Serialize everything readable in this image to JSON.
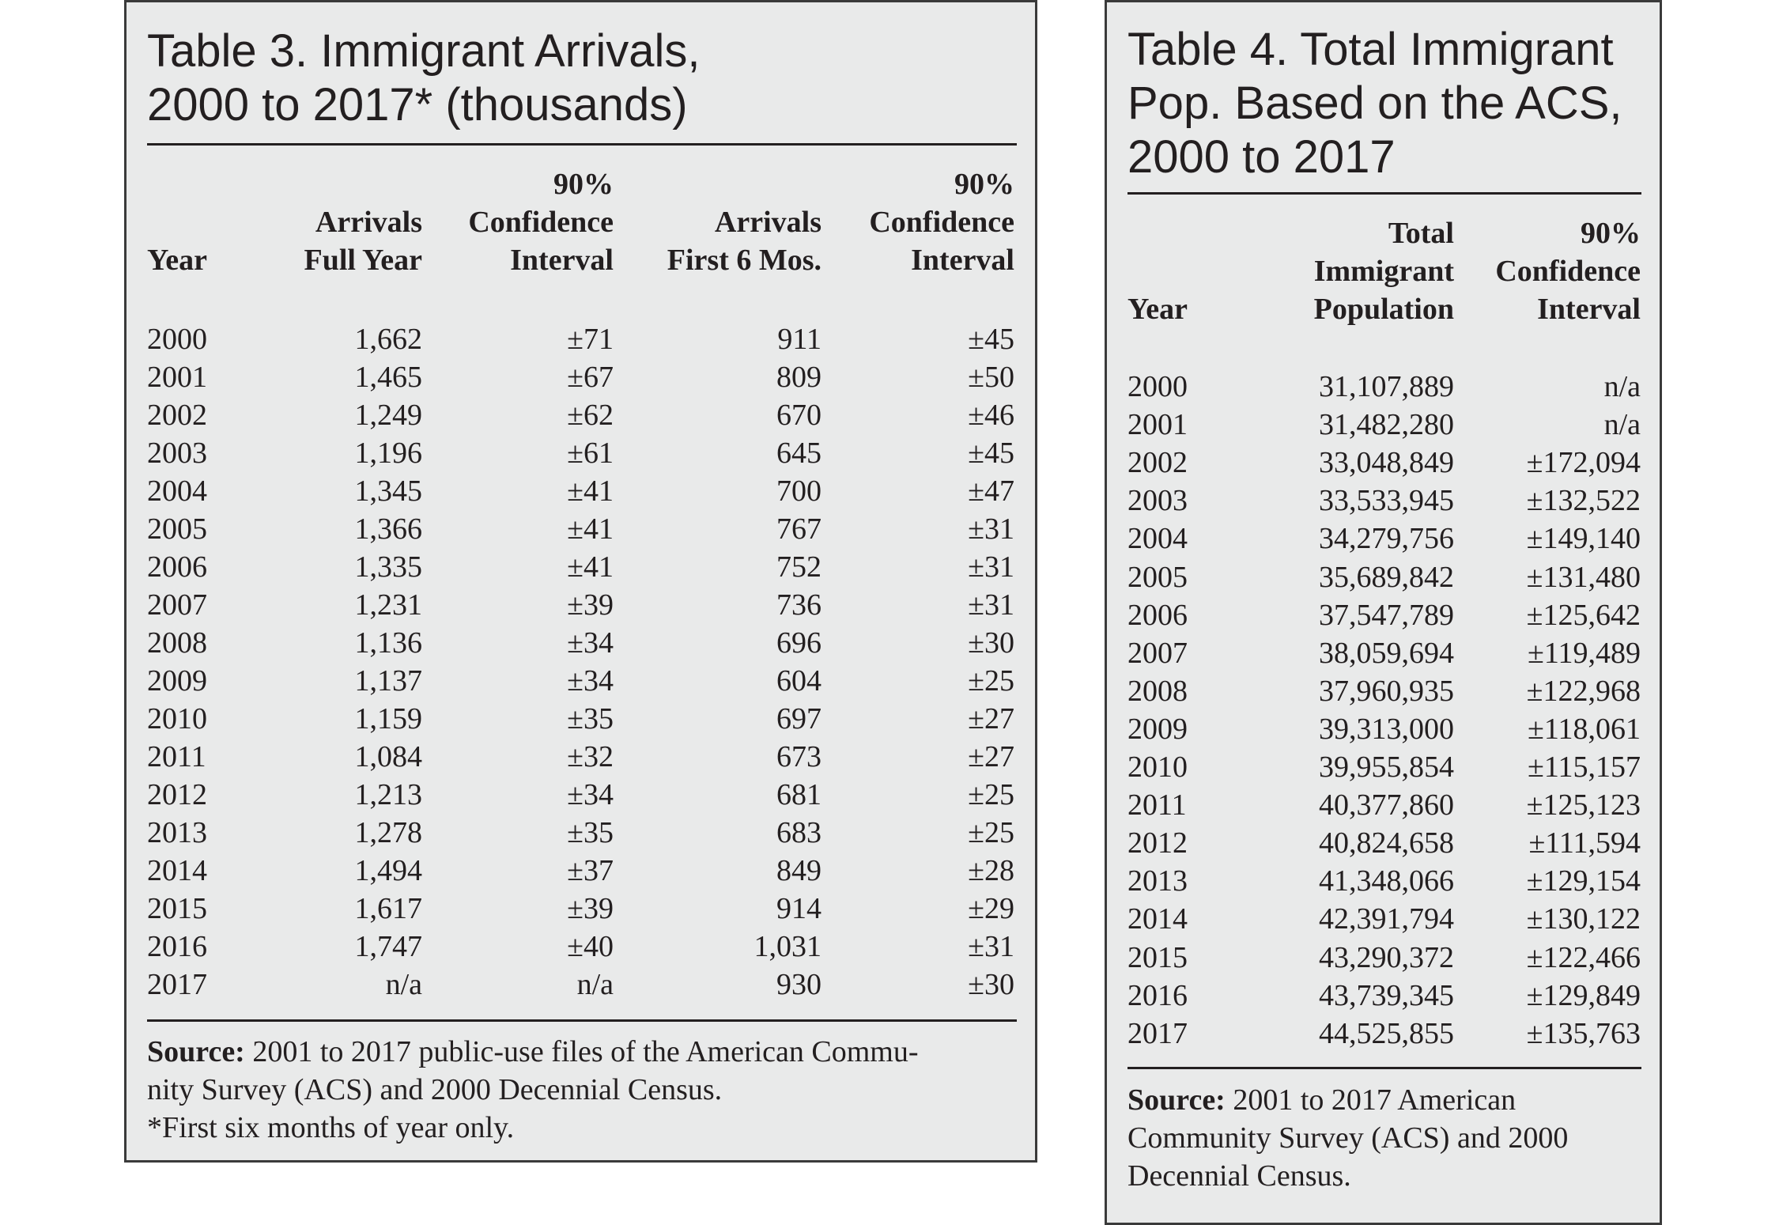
{
  "table3": {
    "title_line1": "Table 3. Immigrant Arrivals,",
    "title_line2": "2000 to 2017* (thousands)",
    "headers": {
      "year": "Year",
      "arrivals_full": [
        "Arrivals",
        "Full Year"
      ],
      "ci1": [
        "90%",
        "Confidence",
        "Interval"
      ],
      "arrivals_6mo": [
        "Arrivals",
        "First 6 Mos."
      ],
      "ci2": [
        "90%",
        "Confidence",
        "Interval"
      ]
    },
    "rows": [
      [
        "2000",
        "1,662",
        "±71",
        "911",
        "±45"
      ],
      [
        "2001",
        "1,465",
        "±67",
        "809",
        "±50"
      ],
      [
        "2002",
        "1,249",
        "±62",
        "670",
        "±46"
      ],
      [
        "2003",
        "1,196",
        "±61",
        "645",
        "±45"
      ],
      [
        "2004",
        "1,345",
        "±41",
        "700",
        "±47"
      ],
      [
        "2005",
        "1,366",
        "±41",
        "767",
        "±31"
      ],
      [
        "2006",
        "1,335",
        "±41",
        "752",
        "±31"
      ],
      [
        "2007",
        "1,231",
        "±39",
        "736",
        "±31"
      ],
      [
        "2008",
        "1,136",
        "±34",
        "696",
        "±30"
      ],
      [
        "2009",
        "1,137",
        "±34",
        "604",
        "±25"
      ],
      [
        "2010",
        "1,159",
        "±35",
        "697",
        "±27"
      ],
      [
        "2011",
        "1,084",
        "±32",
        "673",
        "±27"
      ],
      [
        "2012",
        "1,213",
        "±34",
        "681",
        "±25"
      ],
      [
        "2013",
        "1,278",
        "±35",
        "683",
        "±25"
      ],
      [
        "2014",
        "1,494",
        "±37",
        "849",
        "±28"
      ],
      [
        "2015",
        "1,617",
        "±39",
        "914",
        "±29"
      ],
      [
        "2016",
        "1,747",
        "±40",
        "1,031",
        "±31"
      ],
      [
        "2017",
        "n/a",
        "n/a",
        "930",
        "±30"
      ]
    ],
    "source_label": "Source:",
    "source_line1": " 2001 to 2017 public-use files of the American Commu-",
    "source_line2": "nity  Survey (ACS) and 2000 Decennial Census.",
    "footnote": "*First six months of year only."
  },
  "table4": {
    "title_line1": "Table 4. Total Immigrant",
    "title_line2": "Pop. Based on the ACS,",
    "title_line3": "2000 to 2017",
    "headers": {
      "year": "Year",
      "total": [
        "Total",
        "Immigrant",
        "Population"
      ],
      "ci": [
        "90%",
        "Confidence",
        "Interval"
      ]
    },
    "rows": [
      [
        "2000",
        "31,107,889",
        "n/a"
      ],
      [
        "2001",
        "31,482,280",
        "n/a"
      ],
      [
        "2002",
        "33,048,849",
        "±172,094"
      ],
      [
        "2003",
        "33,533,945",
        "±132,522"
      ],
      [
        "2004",
        "34,279,756",
        "±149,140"
      ],
      [
        "2005",
        "35,689,842",
        "±131,480"
      ],
      [
        "2006",
        "37,547,789",
        "±125,642"
      ],
      [
        "2007",
        "38,059,694",
        "±119,489"
      ],
      [
        "2008",
        "37,960,935",
        "±122,968"
      ],
      [
        "2009",
        "39,313,000",
        "±118,061"
      ],
      [
        "2010",
        "39,955,854",
        "±115,157"
      ],
      [
        "2011",
        "40,377,860",
        "±125,123"
      ],
      [
        "2012",
        "40,824,658",
        "±111,594"
      ],
      [
        "2013",
        "41,348,066",
        "±129,154"
      ],
      [
        "2014",
        "42,391,794",
        "±130,122"
      ],
      [
        "2015",
        "43,290,372",
        "±122,466"
      ],
      [
        "2016",
        "43,739,345",
        "±129,849"
      ],
      [
        "2017",
        "44,525,855",
        "±135,763"
      ]
    ],
    "source_label": "Source:",
    "source_line1": " 2001 to 2017 American",
    "source_line2": "Community  Survey (ACS) and 2000",
    "source_line3": "Decennial Census."
  }
}
